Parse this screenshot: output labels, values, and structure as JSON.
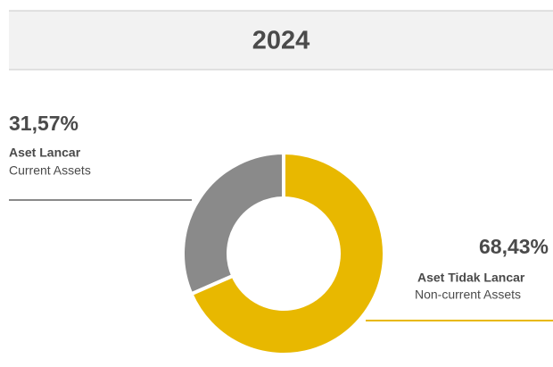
{
  "chart_data": {
    "type": "donut",
    "title": "2024",
    "categories": [
      "Aset Lancar",
      "Aset Tidak Lancar"
    ],
    "categories_en": [
      "Current Assets",
      "Non-current Assets"
    ],
    "values": [
      31.57,
      68.43
    ],
    "value_labels": [
      "31,57%",
      "68,43%"
    ],
    "colors": [
      "#8a8a8a",
      "#e8b800"
    ]
  }
}
